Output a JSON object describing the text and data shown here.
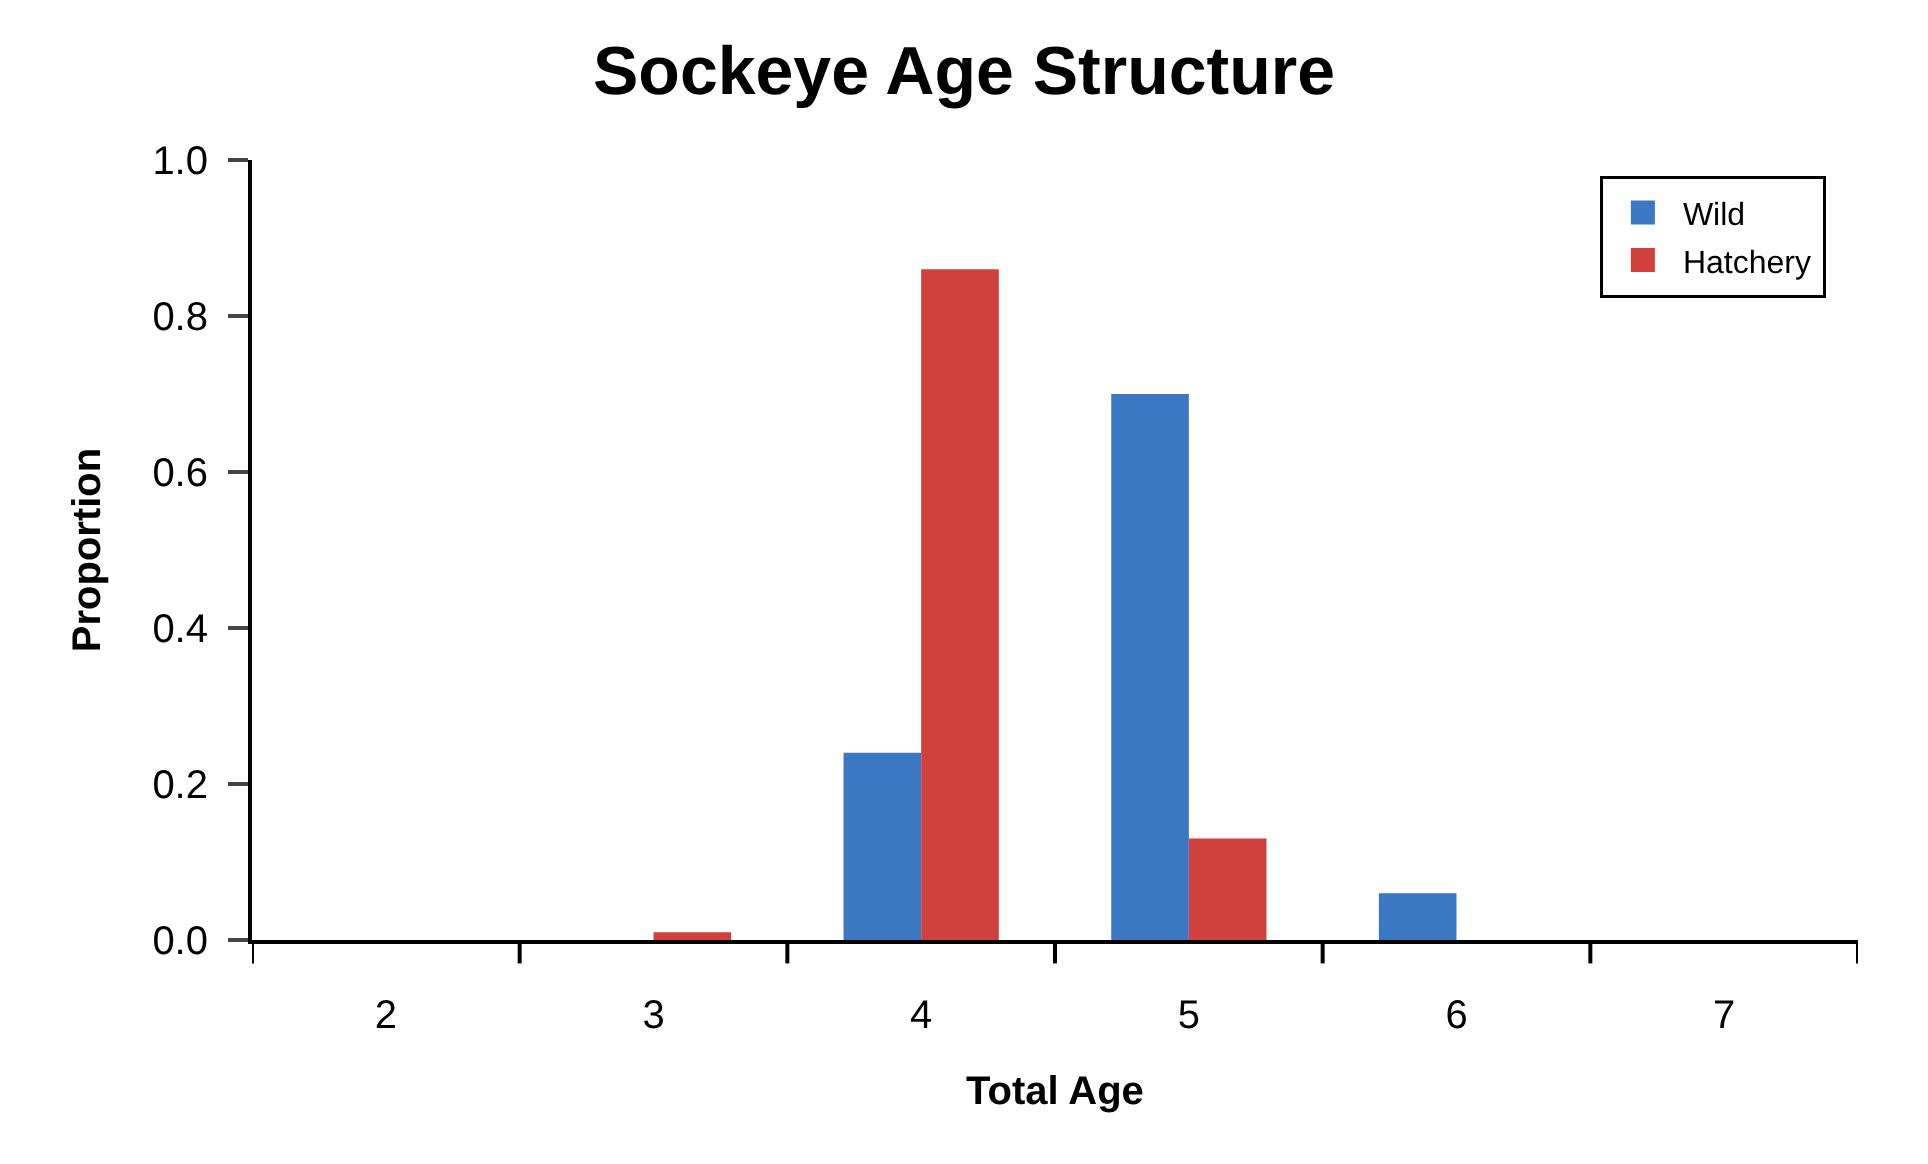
{
  "chart_data": {
    "type": "bar",
    "title": "Sockeye Age Structure",
    "xlabel": "Total Age",
    "ylabel": "Proportion",
    "categories": [
      "2",
      "3",
      "4",
      "5",
      "6",
      "7"
    ],
    "series": [
      {
        "name": "Wild",
        "color": "#3a78c4",
        "values": [
          0,
          0,
          0.24,
          0.7,
          0.06,
          0
        ]
      },
      {
        "name": "Hatchery",
        "color": "#d0403c",
        "values": [
          0,
          0.01,
          0.86,
          0.13,
          0,
          0
        ]
      }
    ],
    "ylim": [
      0,
      1
    ],
    "yticks": [
      {
        "value": 0,
        "label": "0.0"
      },
      {
        "value": 0.2,
        "label": "0.2"
      },
      {
        "value": 0.4,
        "label": "0.4"
      },
      {
        "value": 0.6,
        "label": "0.6"
      },
      {
        "value": 0.8,
        "label": "0.8"
      },
      {
        "value": 1,
        "label": "1.0"
      }
    ],
    "grid": false,
    "legend": "top right"
  }
}
